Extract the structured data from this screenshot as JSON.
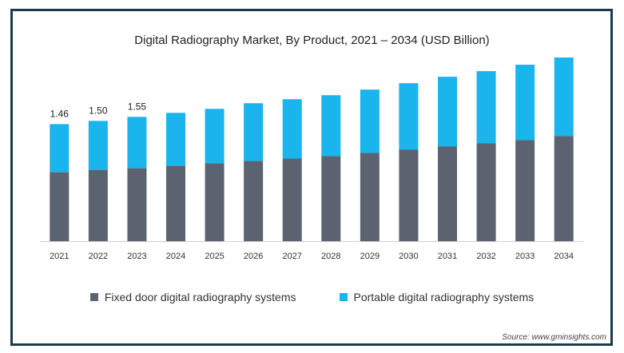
{
  "chart_data": {
    "type": "bar",
    "stacked": true,
    "title": "Digital Radiography Market, By Product, 2021 – 2034 (USD Billion)",
    "categories": [
      "2021",
      "2022",
      "2023",
      "2024",
      "2025",
      "2026",
      "2027",
      "2028",
      "2029",
      "2030",
      "2031",
      "2032",
      "2033",
      "2034"
    ],
    "series": [
      {
        "name": "Fixed door digital radiography systems",
        "color": "#5b6370",
        "values": [
          0.86,
          0.89,
          0.91,
          0.94,
          0.97,
          1.0,
          1.03,
          1.06,
          1.1,
          1.14,
          1.18,
          1.22,
          1.26,
          1.31
        ]
      },
      {
        "name": "Portable digital radiography systems",
        "color": "#19b5ec",
        "values": [
          0.6,
          0.61,
          0.64,
          0.66,
          0.68,
          0.72,
          0.74,
          0.76,
          0.79,
          0.83,
          0.87,
          0.9,
          0.94,
          0.98
        ]
      }
    ],
    "data_labels": [
      "1.46",
      "1.50",
      "1.55"
    ],
    "ylim": [
      0,
      2.29
    ],
    "grid": false,
    "legend_position": "bottom"
  },
  "source": "Source: www.gminsights.com"
}
